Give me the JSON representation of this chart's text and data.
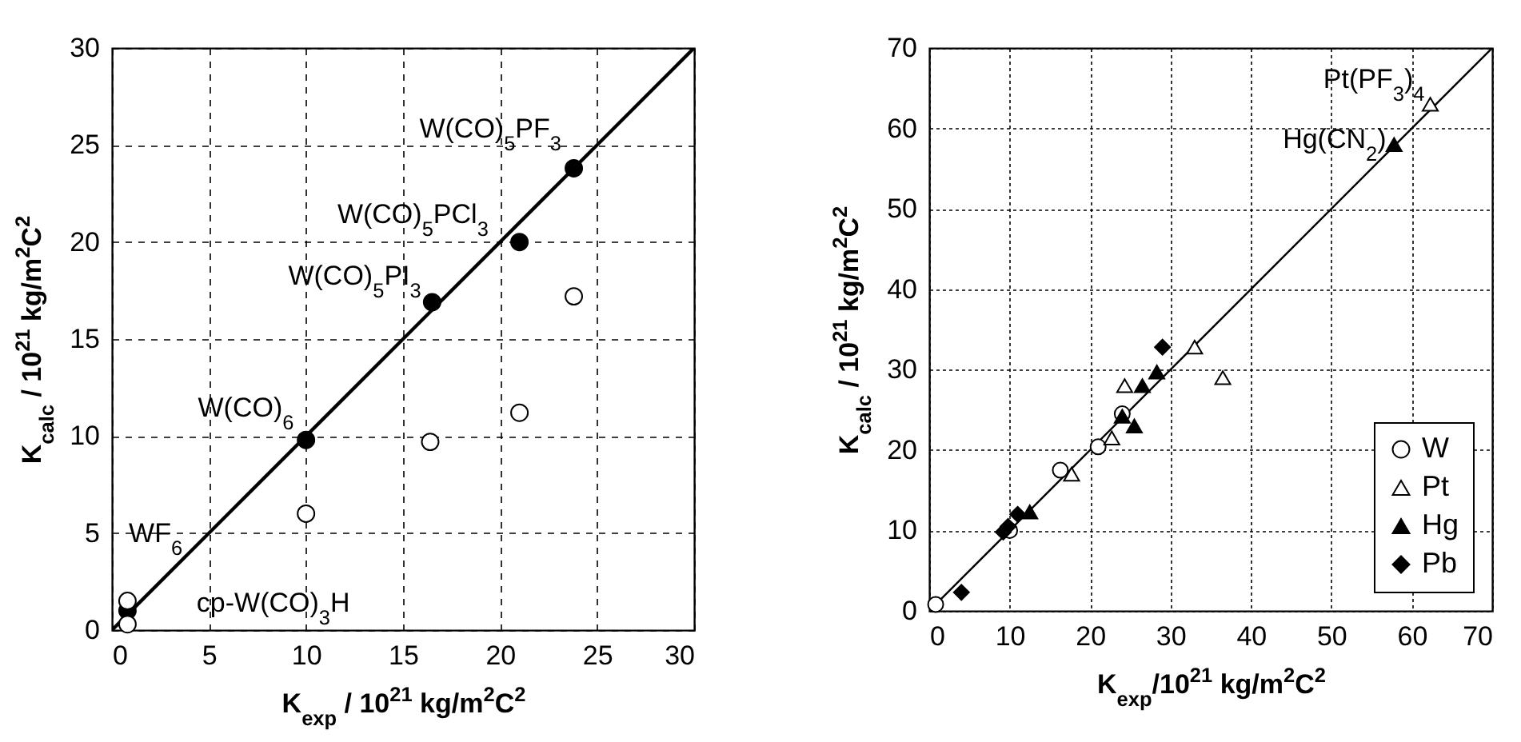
{
  "chart_data": [
    {
      "type": "scatter",
      "xlabel": "K$_{exp}$ / 10$^{21}$ kg/m$^{2}$C$^{2}$",
      "ylabel": "K$_{calc}$ / 10$^{21}$ kg/m$^{2}$C$^{2}$",
      "xlim": [
        0,
        30
      ],
      "ylim": [
        0,
        30
      ],
      "xticks": [
        0,
        5,
        10,
        15,
        20,
        25,
        30
      ],
      "yticks": [
        0,
        5,
        10,
        15,
        20,
        25,
        30
      ],
      "grid": true,
      "series": [
        {
          "type": "line",
          "color": "#000000",
          "x": [
            0,
            30
          ],
          "values": [
            0,
            30
          ]
        },
        {
          "color": "#000000",
          "marker": "circle",
          "x": [
            0.8,
            10,
            16.5,
            21,
            23.8
          ],
          "values": [
            1,
            9.8,
            16.9,
            20,
            23.8
          ]
        },
        {
          "color": "#ffffff",
          "marker": "circle",
          "x": [
            0.8,
            0.8,
            10,
            16.4,
            21,
            23.8
          ],
          "values": [
            0.3,
            1.5,
            6,
            9.7,
            11.2,
            17.2
          ]
        }
      ],
      "annotations": [
        "W(CO)$_{5}$PF$_{3}$",
        "W(CO)$_{5}$PCl$_{3}$",
        "W(CO)$_{5}$PI$_{3}$",
        "W(CO)$_{6}$",
        "WF$_{6}$",
        "cp-W(CO)$_{3}$H"
      ]
    },
    {
      "type": "scatter",
      "xlabel": "K$_{exp}$/10$^{21}$ kg/m$^{2}$C$^{2}$",
      "ylabel": "K$_{calc}$ / 10$^{21}$ kg/m$^{2}$C$^{2}$",
      "xlim": [
        0,
        70
      ],
      "ylim": [
        0,
        70
      ],
      "xticks": [
        0,
        10,
        20,
        30,
        40,
        50,
        60,
        70
      ],
      "yticks": [
        0,
        10,
        20,
        30,
        40,
        50,
        60,
        70
      ],
      "grid": true,
      "legend": "bottom right",
      "series": [
        {
          "type": "line",
          "color": "#000000",
          "x": [
            0,
            70
          ],
          "values": [
            0,
            70
          ]
        },
        {
          "name": "W",
          "color": "#ffffff",
          "marker": "circle",
          "x": [
            0.8,
            10,
            16.3,
            21,
            24
          ],
          "values": [
            0.8,
            10,
            17.5,
            20.4,
            24.5
          ]
        },
        {
          "name": "Pt",
          "color": "#ffffff",
          "marker": "triangle",
          "x": [
            17.7,
            22.7,
            24.3,
            33,
            36.5,
            62.3
          ],
          "values": [
            17,
            21.5,
            28,
            32.8,
            29,
            63
          ]
        },
        {
          "name": "Hg",
          "color": "#000000",
          "marker": "triangle",
          "x": [
            12.5,
            24,
            25.5,
            26.5,
            28.3,
            57.8
          ],
          "values": [
            12.3,
            24.2,
            23,
            28,
            29.7,
            58
          ]
        },
        {
          "name": "Pb",
          "color": "#000000",
          "marker": "diamond",
          "x": [
            4,
            9.2,
            9.8,
            11,
            29
          ],
          "values": [
            2.3,
            9.8,
            10.5,
            12,
            32.8
          ]
        }
      ],
      "annotations": [
        "Pt(PF$_{3}$)$_{4}$",
        "Hg(CN$_{2}$)"
      ]
    }
  ]
}
